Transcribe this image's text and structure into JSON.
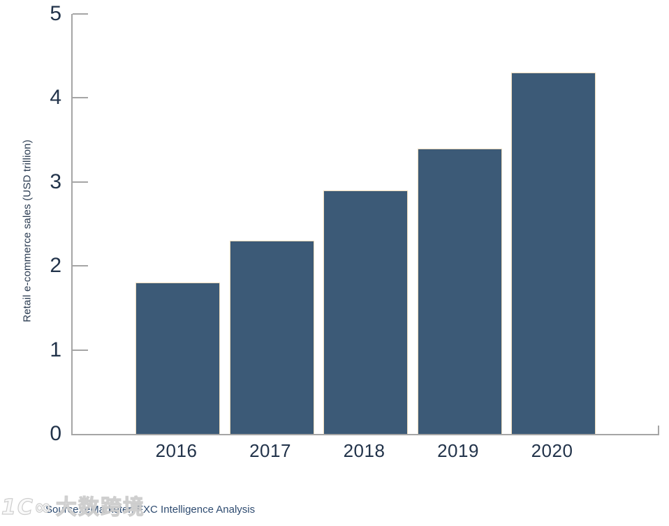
{
  "chart_data": {
    "type": "bar",
    "categories": [
      "2016",
      "2017",
      "2018",
      "2019",
      "2020"
    ],
    "values": [
      1.8,
      2.3,
      2.9,
      3.4,
      4.3
    ],
    "ylabel": "Retail e-commerce sales (USD trillion)",
    "xlabel": "",
    "ylim": [
      0,
      5
    ],
    "yticks": [
      0,
      1,
      2,
      3,
      4,
      5
    ],
    "grid": false,
    "legend": "none",
    "bar_color": "#3c5a77",
    "bar_border_color": "#eedcbd",
    "axis_color": "#a5a5a5",
    "label_color": "#22334a"
  },
  "footer": {
    "source": "Source: eMarketer, FXC Intelligence Analysis"
  },
  "watermark": {
    "logo": "1C∞",
    "text": "大数跨境"
  }
}
